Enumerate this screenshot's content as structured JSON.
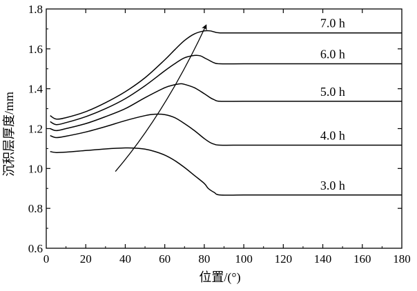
{
  "chart_data": {
    "type": "line",
    "xlabel": "位置/(°)",
    "ylabel": "沉积层厚度/mm",
    "xlim": [
      0,
      180
    ],
    "ylim": [
      0.6,
      1.8
    ],
    "xticks": [
      "0",
      "20",
      "40",
      "60",
      "80",
      "100",
      "120",
      "140",
      "160",
      "180"
    ],
    "yticks": [
      "0.6",
      "0.8",
      "1.0",
      "1.2",
      "1.4",
      "1.6",
      "1.8"
    ],
    "grid": false,
    "legend": "none",
    "series": [
      {
        "name": "3.0 h",
        "x": [
          2,
          5,
          10,
          20,
          30,
          40,
          45,
          50,
          55,
          60,
          65,
          70,
          75,
          80,
          82,
          85,
          88,
          100,
          120,
          140,
          160,
          180
        ],
        "y": [
          1.085,
          1.08,
          1.082,
          1.09,
          1.098,
          1.103,
          1.102,
          1.097,
          1.085,
          1.067,
          1.04,
          1.005,
          0.965,
          0.925,
          0.9,
          0.88,
          0.867,
          0.867,
          0.867,
          0.867,
          0.867,
          0.867
        ]
      },
      {
        "name": "4.0 h",
        "x": [
          2,
          5,
          10,
          20,
          30,
          40,
          50,
          55,
          60,
          65,
          70,
          75,
          80,
          83,
          85,
          88,
          100,
          120,
          140,
          160,
          180
        ],
        "y": [
          1.165,
          1.155,
          1.162,
          1.183,
          1.21,
          1.24,
          1.265,
          1.272,
          1.27,
          1.255,
          1.225,
          1.19,
          1.15,
          1.13,
          1.122,
          1.117,
          1.117,
          1.117,
          1.117,
          1.117,
          1.117
        ]
      },
      {
        "name": "5.0 h",
        "x": [
          2,
          5,
          10,
          20,
          30,
          40,
          50,
          60,
          65,
          68,
          70,
          75,
          80,
          83,
          85,
          88,
          100,
          120,
          140,
          160,
          180
        ],
        "y": [
          1.2,
          1.19,
          1.2,
          1.225,
          1.26,
          1.3,
          1.355,
          1.405,
          1.42,
          1.425,
          1.422,
          1.405,
          1.375,
          1.355,
          1.345,
          1.337,
          1.337,
          1.337,
          1.337,
          1.337,
          1.337
        ]
      },
      {
        "name": "6.0 h",
        "x": [
          2,
          5,
          10,
          20,
          30,
          40,
          50,
          60,
          65,
          70,
          75,
          78,
          80,
          82,
          85,
          88,
          100,
          120,
          140,
          160,
          180
        ],
        "y": [
          1.235,
          1.22,
          1.23,
          1.26,
          1.3,
          1.35,
          1.415,
          1.49,
          1.525,
          1.555,
          1.567,
          1.565,
          1.555,
          1.545,
          1.53,
          1.525,
          1.525,
          1.525,
          1.525,
          1.525,
          1.525
        ]
      },
      {
        "name": "7.0 h",
        "x": [
          2,
          5,
          10,
          20,
          30,
          40,
          50,
          60,
          65,
          70,
          75,
          80,
          83,
          85,
          88,
          100,
          120,
          140,
          160,
          180
        ],
        "y": [
          1.265,
          1.248,
          1.255,
          1.285,
          1.33,
          1.385,
          1.455,
          1.545,
          1.595,
          1.642,
          1.675,
          1.69,
          1.69,
          1.685,
          1.68,
          1.68,
          1.68,
          1.68,
          1.68,
          1.68
        ]
      }
    ],
    "annotations": [
      {
        "type": "arrow",
        "from": [
          35,
          0.985
        ],
        "to": [
          81,
          1.72
        ]
      }
    ]
  }
}
